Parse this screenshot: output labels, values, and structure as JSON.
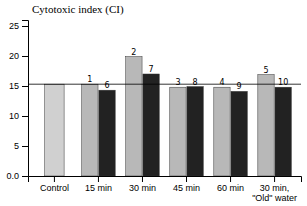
{
  "chart_data": {
    "type": "bar",
    "title": "Cytotoxic index (CI)",
    "categories": [
      "Control",
      "15 min",
      "30 min",
      "45 min",
      "60 min",
      "30 min,\n\"Old\" water"
    ],
    "series": [
      {
        "values": [
          15.3,
          15.3,
          19.9,
          14.8,
          14.8,
          16.9
        ],
        "colors": [
          "#d0d0d0",
          "#b8b8b8",
          "#b8b8b8",
          "#b8b8b8",
          "#b8b8b8",
          "#b8b8b8"
        ],
        "bar_labels": [
          null,
          "1",
          "2",
          "3",
          "4",
          "5"
        ]
      },
      {
        "values": [
          null,
          14.3,
          17.0,
          14.9,
          14.1,
          14.8
        ],
        "color": "#222222",
        "bar_labels": [
          null,
          "6",
          "7",
          "8",
          "9",
          "10"
        ]
      }
    ],
    "reference_line": 15.3,
    "ylim": [
      0,
      26
    ],
    "yticks": [
      {
        "value": 0,
        "label": "0.0"
      },
      5,
      10,
      15,
      20,
      25
    ],
    "grid": false
  }
}
